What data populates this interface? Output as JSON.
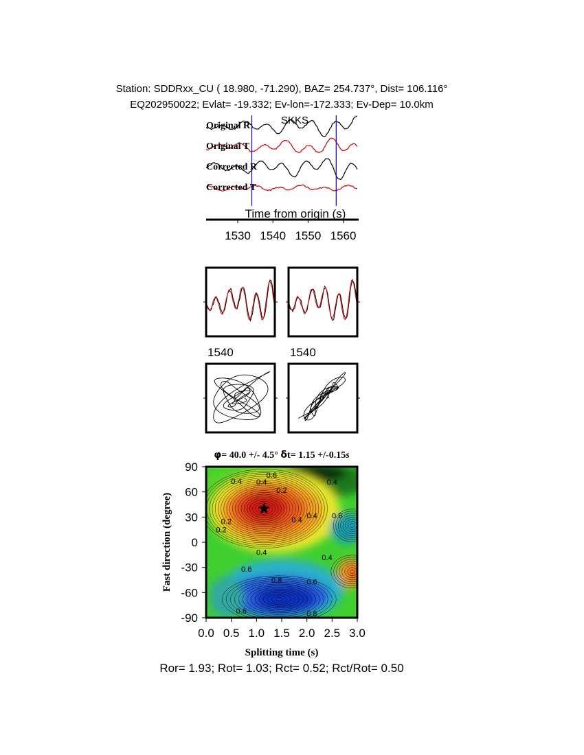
{
  "header": {
    "line1": "Station: SDDRxx_CU (  18.980,  -71.290), BAZ=  254.737°, Dist=  106.116°",
    "line2": "EQ202950022; Evlat= -19.332; Ev-lon=-172.333; Ev-Dep= 10.0km"
  },
  "footer": "Ror= 1.93; Rot= 1.03; Rct= 0.52; Rct/Rot= 0.50",
  "colors": {
    "radial": "#000000",
    "transverse": "#cc0000",
    "marker": "#0000cc",
    "phase_label": "#cc0000"
  },
  "chart_data": [
    {
      "type": "line",
      "panel": "waveforms",
      "phase": "SKKS",
      "traces": [
        {
          "name": "Original R",
          "color": "#000000"
        },
        {
          "name": "Original T",
          "color": "#cc0000"
        },
        {
          "name": "Corrected R",
          "color": "#000000"
        },
        {
          "name": "Corrected T",
          "color": "#cc0000"
        }
      ],
      "time_window_s": [
        1534,
        1558
      ],
      "xlabel": "Time from origin (s)",
      "xlim": [
        1521,
        1564
      ],
      "xticks": [
        1530,
        1540,
        1550,
        1560
      ]
    },
    {
      "type": "line",
      "panel": "particle_waveforms",
      "xticks": [
        "1540",
        "1540"
      ]
    },
    {
      "type": "heatmap",
      "panel": "splitting_grid",
      "title_phi": "40.0 +/- 4.5°",
      "title_dt": "1.15 +/-0.15",
      "title_dt_unit": "s",
      "best": {
        "dt": 1.15,
        "phi": 40.0
      },
      "xlabel": "Splitting time (s)",
      "ylabel": "Fast direction (degree)",
      "xlim": [
        0,
        3.0
      ],
      "ylim": [
        -90,
        90
      ],
      "xticks": [
        "0.0",
        "0.5",
        "1.0",
        "1.5",
        "2.0",
        "2.5",
        "3.0"
      ],
      "yticks": [
        "90",
        "60",
        "30",
        "0",
        "-30",
        "-60",
        "-90"
      ],
      "contour_labels": [
        "0.6",
        "0.4",
        "0.4",
        "0.2",
        "0.4",
        "0.2",
        "0.4",
        "0.4",
        "0.6",
        "0.2",
        "0.4",
        "0.4",
        "0.6",
        "0.8",
        "0.6",
        "0.6",
        "0.8"
      ]
    }
  ]
}
